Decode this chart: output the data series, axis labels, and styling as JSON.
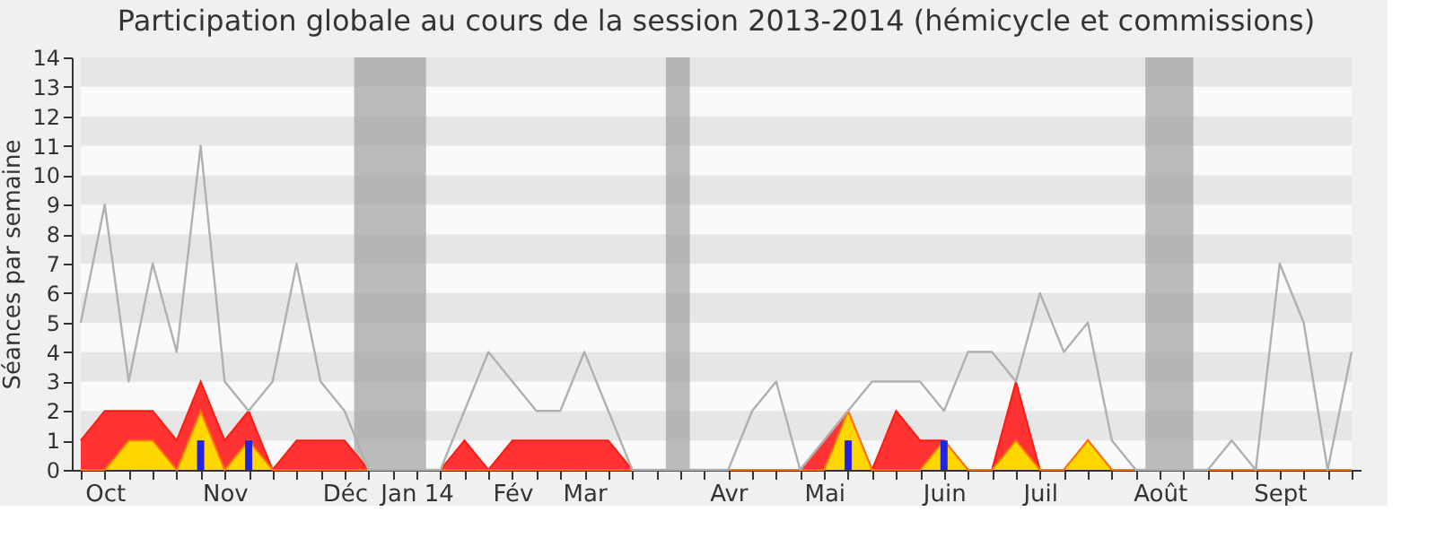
{
  "chart_data": {
    "type": "line",
    "title": "Participation globale au cours de la session 2013-2014 (hémicycle et commissions)",
    "ylabel": "Séances par semaine",
    "categories": [
      null,
      "Oct",
      null,
      null,
      null,
      null,
      "Nov",
      null,
      null,
      null,
      null,
      "Déc",
      null,
      null,
      "Jan 14",
      null,
      null,
      null,
      "Fév",
      null,
      null,
      "Mar",
      null,
      null,
      null,
      null,
      null,
      "Avr",
      null,
      null,
      null,
      "Mai",
      null,
      null,
      null,
      null,
      "Juin",
      null,
      null,
      null,
      "Juil",
      null,
      null,
      null,
      null,
      "Août",
      null,
      null,
      null,
      null,
      "Sept",
      null,
      null,
      null
    ],
    "series": [
      {
        "type": "area",
        "color": "#ff3333",
        "values": [
          1,
          2,
          2,
          2,
          1,
          3,
          1,
          2,
          0,
          1,
          1,
          1,
          0,
          0,
          0,
          0,
          1,
          0,
          1,
          1,
          1,
          1,
          1,
          0,
          0,
          0,
          0,
          0,
          0,
          0,
          0,
          1,
          2,
          0,
          2,
          1,
          1,
          0,
          0,
          3,
          0,
          0,
          1,
          0,
          0,
          0,
          0,
          0,
          0,
          0,
          0,
          0,
          0,
          0
        ]
      },
      {
        "type": "area",
        "color": "#ffd700",
        "values": [
          0,
          0,
          1,
          1,
          0,
          2,
          0,
          1,
          0,
          0,
          0,
          0,
          0,
          0,
          0,
          0,
          0,
          0,
          0,
          0,
          0,
          0,
          0,
          0,
          0,
          0,
          0,
          0,
          0,
          0,
          0,
          0,
          2,
          0,
          0,
          0,
          1,
          0,
          0,
          1,
          0,
          0,
          1,
          0,
          0,
          0,
          0,
          0,
          0,
          0,
          0,
          0,
          0,
          0
        ]
      },
      {
        "type": "bar",
        "color": "#2424e0",
        "values": [
          0,
          0,
          0,
          0,
          0,
          1,
          0,
          1,
          0,
          0,
          0,
          0,
          0,
          0,
          0,
          0,
          0,
          0,
          0,
          0,
          0,
          0,
          0,
          0,
          0,
          0,
          0,
          0,
          0,
          0,
          0,
          0,
          1,
          0,
          0,
          0,
          1,
          0,
          0,
          0,
          0,
          0,
          0,
          0,
          0,
          0,
          0,
          0,
          0,
          0,
          0,
          0,
          0,
          0
        ]
      },
      {
        "color": "#b0b0b0",
        "line_style": "solid",
        "values": [
          5,
          9,
          3,
          7,
          4,
          11,
          3,
          2,
          3,
          7,
          3,
          2,
          0,
          0,
          0,
          0,
          2,
          4,
          3,
          2,
          2,
          4,
          2,
          0,
          0,
          0,
          0,
          0,
          2,
          3,
          0,
          1,
          2,
          3,
          3,
          3,
          2,
          4,
          4,
          3,
          6,
          4,
          5,
          1,
          0,
          0,
          0,
          0,
          1,
          0,
          7,
          5,
          0,
          4
        ]
      }
    ],
    "ylim": [
      0,
      14
    ],
    "yticks": [
      0,
      1,
      2,
      3,
      4,
      5,
      6,
      7,
      8,
      9,
      10,
      11,
      12,
      13,
      14
    ],
    "marker": "none"
  }
}
